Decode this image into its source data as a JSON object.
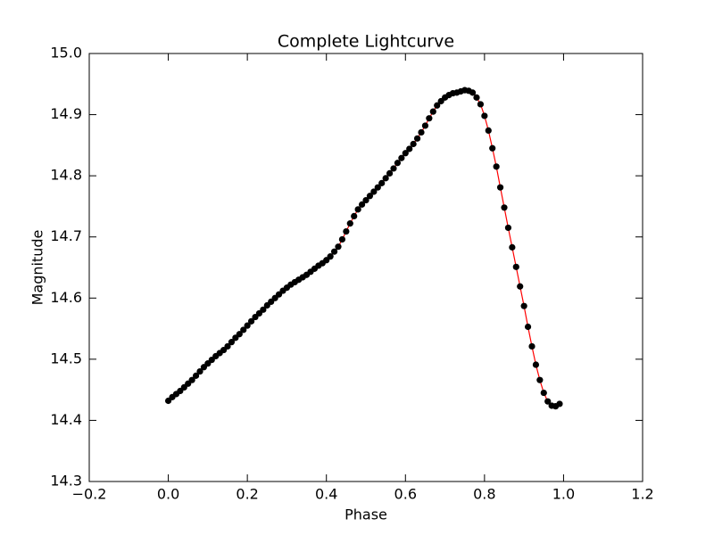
{
  "chart_data": {
    "type": "line",
    "title": "Complete Lightcurve",
    "xlabel": "Phase",
    "ylabel": "Magnitude",
    "x": [
      0,
      0.01,
      0.02,
      0.03,
      0.04,
      0.05,
      0.06,
      0.07,
      0.08,
      0.09,
      0.1,
      0.11,
      0.12,
      0.13,
      0.14,
      0.15,
      0.16,
      0.17,
      0.18,
      0.19,
      0.2,
      0.21,
      0.22,
      0.23,
      0.24,
      0.25,
      0.26,
      0.27,
      0.28,
      0.29,
      0.3,
      0.31,
      0.32,
      0.33,
      0.34,
      0.35,
      0.36,
      0.37,
      0.38,
      0.39,
      0.4,
      0.41,
      0.42,
      0.43,
      0.44,
      0.45,
      0.46,
      0.47,
      0.48,
      0.49,
      0.5,
      0.51,
      0.52,
      0.53,
      0.54,
      0.55,
      0.56,
      0.57,
      0.58,
      0.59,
      0.6,
      0.61,
      0.62,
      0.63,
      0.64,
      0.65,
      0.66,
      0.67,
      0.68,
      0.69,
      0.7,
      0.71,
      0.72,
      0.73,
      0.74,
      0.75,
      0.76,
      0.77,
      0.78,
      0.79,
      0.8,
      0.81,
      0.82,
      0.83,
      0.84,
      0.85,
      0.86,
      0.87,
      0.88,
      0.89,
      0.9,
      0.91,
      0.92,
      0.93,
      0.94,
      0.95,
      0.96,
      0.97,
      0.98,
      0.99
    ],
    "values": [
      14.432,
      14.438,
      14.443,
      14.448,
      14.454,
      14.46,
      14.466,
      14.473,
      14.48,
      14.487,
      14.493,
      14.499,
      14.505,
      14.51,
      14.515,
      14.521,
      14.528,
      14.535,
      14.541,
      14.548,
      14.555,
      14.562,
      14.569,
      14.575,
      14.581,
      14.588,
      14.594,
      14.6,
      14.606,
      14.612,
      14.617,
      14.622,
      14.626,
      14.63,
      14.634,
      14.638,
      14.643,
      14.648,
      14.653,
      14.657,
      14.662,
      14.668,
      14.676,
      14.684,
      14.696,
      14.709,
      14.722,
      14.734,
      14.745,
      14.753,
      14.76,
      14.767,
      14.774,
      14.781,
      14.788,
      14.796,
      14.804,
      14.812,
      14.821,
      14.829,
      14.837,
      14.844,
      14.852,
      14.861,
      14.871,
      14.882,
      14.894,
      14.905,
      14.915,
      14.922,
      14.928,
      14.932,
      14.935,
      14.936,
      14.938,
      14.94,
      14.939,
      14.936,
      14.928,
      14.917,
      14.898,
      14.874,
      14.845,
      14.815,
      14.781,
      14.748,
      14.715,
      14.683,
      14.651,
      14.619,
      14.587,
      14.553,
      14.521,
      14.491,
      14.466,
      14.445,
      14.431,
      14.424,
      14.423,
      14.427
    ],
    "color": "#ff0000",
    "marker_color": "#000000",
    "markers": true,
    "xlim": [
      -0.2,
      1.2
    ],
    "xticks": [
      {
        "value": -0.2,
        "label": "−0.2"
      },
      {
        "value": 0,
        "label": "0.0"
      },
      0.2,
      0.4,
      0.6,
      0.8,
      {
        "value": 1,
        "label": "1.0"
      },
      1.2
    ],
    "ylim": [
      14.3,
      15
    ],
    "yticks": [
      14.3,
      14.4,
      14.5,
      14.6,
      14.7,
      14.8,
      14.9,
      {
        "value": 15,
        "label": "15.0"
      }
    ],
    "grid": false
  }
}
